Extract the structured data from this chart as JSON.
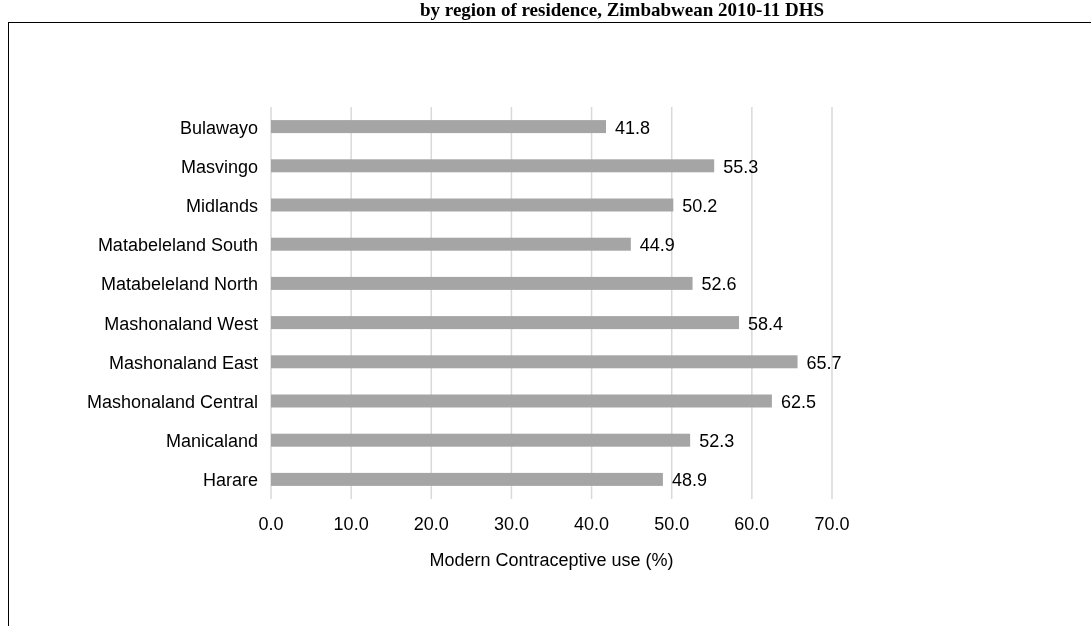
{
  "chart_data": {
    "type": "bar",
    "orientation": "horizontal",
    "title": "by region of residence, Zimbabwean 2010-11 DHS",
    "categories": [
      "Bulawayo",
      "Masvingo",
      "Midlands",
      "Matabeleland South",
      "Matabeleland North",
      "Mashonaland West",
      "Mashonaland East",
      "Mashonaland Central",
      "Manicaland",
      "Harare"
    ],
    "values": [
      41.8,
      55.3,
      50.2,
      44.9,
      52.6,
      58.4,
      65.7,
      62.5,
      52.3,
      48.9
    ],
    "color": "#a5a5a5",
    "xlim": [
      0,
      70
    ],
    "xticks": [
      {
        "value": 0,
        "label": "0.0"
      },
      {
        "value": 10,
        "label": "10.0"
      },
      {
        "value": 20,
        "label": "20.0"
      },
      {
        "value": 30,
        "label": "30.0"
      },
      {
        "value": 40,
        "label": "40.0"
      },
      {
        "value": 50,
        "label": "50.0"
      },
      {
        "value": 60,
        "label": "60.0"
      },
      {
        "value": 70,
        "label": "70.0"
      }
    ],
    "xlabel": "Modern Contraceptive use (%)",
    "grid": "x",
    "data_labels": true
  }
}
